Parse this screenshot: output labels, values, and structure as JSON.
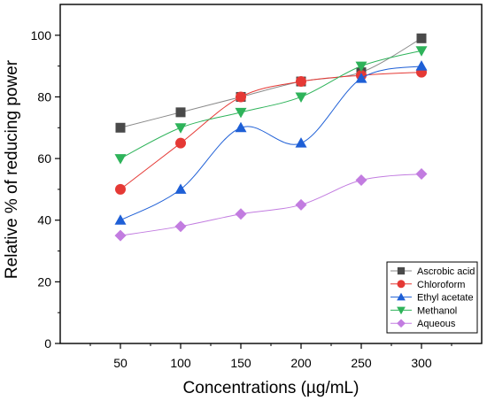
{
  "chart_data": {
    "type": "line",
    "xlabel": "Concentrations (µg/mL)",
    "ylabel": "Relative % of reducing power",
    "x": [
      50,
      100,
      150,
      200,
      250,
      300
    ],
    "x_tick_labels": [
      "50",
      "100",
      "150",
      "200",
      "250",
      "300"
    ],
    "y_tick_labels": [
      "0",
      "20",
      "40",
      "60",
      "80",
      "100"
    ],
    "xlim": [
      0,
      350
    ],
    "ylim": [
      0,
      110
    ],
    "grid": false,
    "legend_position": "bottom-right",
    "series": [
      {
        "name": "Ascrobic acid",
        "values": [
          70,
          75,
          80,
          85,
          88,
          99
        ],
        "color": "#4a4a4a",
        "line_color": "#8a8a8a",
        "marker": "square"
      },
      {
        "name": "Chloroform",
        "values": [
          50,
          65,
          80,
          85,
          87,
          88
        ],
        "color": "#e53935",
        "line_color": "#e53935",
        "marker": "circle"
      },
      {
        "name": "Ethyl acetate",
        "values": [
          40,
          50,
          70,
          65,
          86,
          90
        ],
        "color": "#1e5fd6",
        "line_color": "#1e5fd6",
        "marker": "triangle-up"
      },
      {
        "name": "Methanol",
        "values": [
          60,
          70,
          75,
          80,
          90,
          95
        ],
        "color": "#2eb35a",
        "line_color": "#2eb35a",
        "marker": "triangle-down"
      },
      {
        "name": "Aqueous",
        "values": [
          35,
          38,
          42,
          45,
          53,
          55
        ],
        "color": "#c27ce0",
        "line_color": "#c27ce0",
        "marker": "diamond"
      }
    ]
  }
}
